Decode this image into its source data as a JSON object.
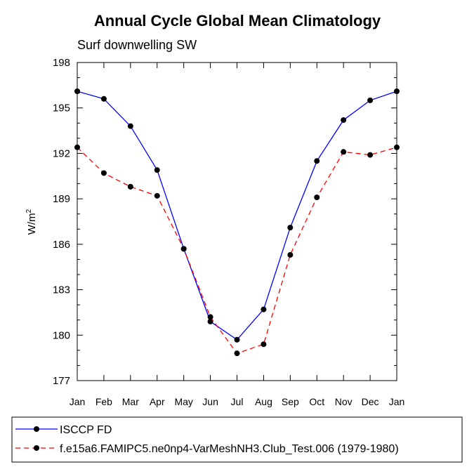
{
  "chart_data": {
    "type": "line",
    "title": "Annual Cycle Global Mean Climatology",
    "subtitle": "Surf downwelling SW",
    "ylabel": "W/m",
    "ylabel_superscript": "2",
    "xlabel": "",
    "ylim": [
      177,
      198
    ],
    "yticks": [
      "177",
      "180",
      "183",
      "186",
      "189",
      "192",
      "195",
      "198"
    ],
    "categories": [
      "Jan",
      "Feb",
      "Mar",
      "Apr",
      "May",
      "Jun",
      "Jul",
      "Aug",
      "Sep",
      "Oct",
      "Nov",
      "Dec",
      "Jan"
    ],
    "series": [
      {
        "name": "ISCCP FD",
        "color": "#0000ff",
        "dash": "solid",
        "values": [
          196.1,
          195.6,
          193.8,
          190.9,
          185.7,
          180.9,
          179.7,
          181.7,
          187.1,
          191.5,
          194.2,
          195.5,
          196.1
        ]
      },
      {
        "name": "f.e15a6.FAMIPC5.ne0np4-VarMeshNH3.Club_Test.006 (1979-1980)",
        "color": "#ff0000",
        "dash": "dashed",
        "values": [
          192.4,
          190.7,
          189.8,
          189.2,
          185.7,
          181.2,
          178.8,
          179.4,
          185.3,
          189.1,
          192.1,
          191.9,
          192.4
        ]
      }
    ],
    "legend": [
      "ISCCP FD",
      "f.e15a6.FAMIPC5.ne0np4-VarMeshNH3.Club_Test.006 (1979-1980)"
    ]
  }
}
